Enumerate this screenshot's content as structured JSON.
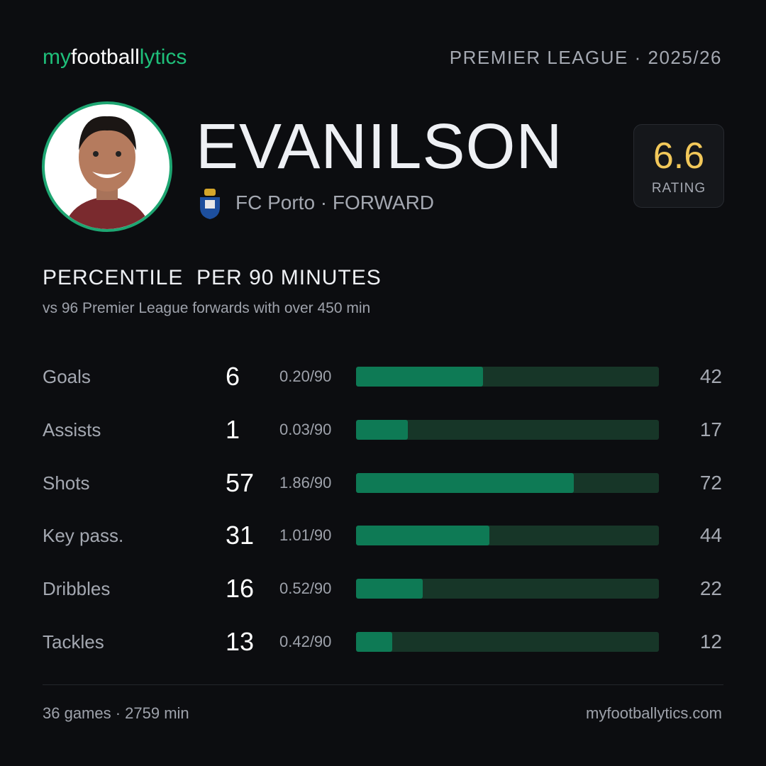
{
  "header": {
    "brand": [
      "my",
      "football",
      "lytics"
    ],
    "league": "PREMIER LEAGUE · 2025/26"
  },
  "player": {
    "name": "EVANILSON",
    "club": "FC Porto · FORWARD",
    "rating": 6.6,
    "rating_label": "RATING"
  },
  "section": {
    "title": "PERCENTILE  PER 90 MINUTES",
    "subtitle": "vs 96 Premier League forwards with over 450 min"
  },
  "stats": [
    {
      "label": "Goals",
      "total": 6,
      "per90": "0.20/90",
      "percentile": 42
    },
    {
      "label": "Assists",
      "total": 1,
      "per90": "0.03/90",
      "percentile": 17
    },
    {
      "label": "Shots",
      "total": 57,
      "per90": "1.86/90",
      "percentile": 72
    },
    {
      "label": "Key pass.",
      "total": 31,
      "per90": "1.01/90",
      "percentile": 44
    },
    {
      "label": "Dribbles",
      "total": 16,
      "per90": "0.52/90",
      "percentile": 22
    },
    {
      "label": "Tackles",
      "total": 13,
      "per90": "0.42/90",
      "percentile": 12
    }
  ],
  "footer": {
    "summary": "36 games · 2759 min",
    "site": "myfootballytics.com"
  }
}
